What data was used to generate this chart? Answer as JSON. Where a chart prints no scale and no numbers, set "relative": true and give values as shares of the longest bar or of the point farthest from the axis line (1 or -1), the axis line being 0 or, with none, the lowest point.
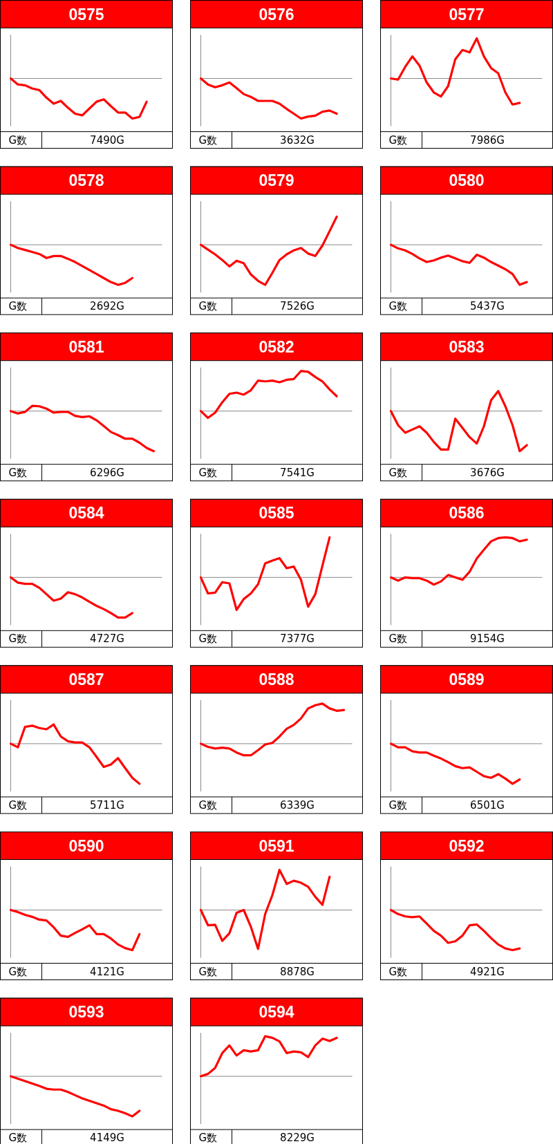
{
  "chart_data": [
    {
      "type": "line",
      "title": "0575",
      "relative": true,
      "color": "#ff0000",
      "annotations": [
        "G数",
        "7490G"
      ],
      "categories": [
        null,
        null,
        null,
        null,
        null,
        null,
        null,
        null,
        null,
        null,
        null,
        null,
        null,
        null,
        null,
        null,
        null,
        null,
        null,
        null,
        null
      ],
      "values": [
        0,
        -0.15,
        -0.17,
        -0.25,
        -0.29,
        -0.48,
        -0.63,
        -0.56,
        -0.73,
        -0.88,
        -0.92,
        -0.75,
        -0.58,
        -0.52,
        -0.69,
        -0.85,
        -0.85,
        -1,
        -0.96,
        -0.58,
        null
      ]
    },
    {
      "type": "line",
      "title": "0576",
      "relative": true,
      "color": "#ff0000",
      "annotations": [
        "G数",
        "3632G"
      ],
      "categories": [
        null,
        null,
        null,
        null,
        null,
        null,
        null,
        null,
        null,
        null,
        null,
        null,
        null,
        null,
        null,
        null,
        null,
        null,
        null,
        null,
        null
      ],
      "values": [
        0,
        -0.15,
        -0.22,
        -0.17,
        -0.1,
        -0.24,
        -0.39,
        -0.46,
        -0.56,
        -0.56,
        -0.56,
        -0.63,
        -0.76,
        -0.88,
        -1,
        -0.95,
        -0.93,
        -0.83,
        -0.8,
        -0.88,
        null
      ]
    },
    {
      "type": "line",
      "title": "0577",
      "relative": true,
      "color": "#ff0000",
      "annotations": [
        "G数",
        "7986G"
      ],
      "categories": [
        null,
        null,
        null,
        null,
        null,
        null,
        null,
        null,
        null,
        null,
        null,
        null,
        null,
        null,
        null,
        null,
        null,
        null,
        null,
        null,
        null
      ],
      "values": [
        0,
        -0.03,
        0.29,
        0.55,
        0.32,
        -0.1,
        -0.35,
        -0.45,
        -0.19,
        0.48,
        0.71,
        0.65,
        1,
        0.55,
        0.26,
        0.13,
        -0.35,
        -0.65,
        -0.61,
        null,
        null
      ]
    },
    {
      "type": "line",
      "title": "0578",
      "relative": true,
      "color": "#ff0000",
      "annotations": [
        "G数",
        "2692G"
      ],
      "categories": [
        null,
        null,
        null,
        null,
        null,
        null,
        null,
        null,
        null,
        null,
        null,
        null,
        null,
        null,
        null,
        null,
        null,
        null,
        null,
        null,
        null
      ],
      "values": [
        0,
        -0.08,
        -0.13,
        -0.18,
        -0.23,
        -0.33,
        -0.28,
        -0.28,
        -0.35,
        -0.43,
        -0.53,
        -0.63,
        -0.73,
        -0.83,
        -0.93,
        -1,
        -0.95,
        -0.83,
        null,
        null,
        null
      ]
    },
    {
      "type": "line",
      "title": "0579",
      "relative": true,
      "color": "#ff0000",
      "annotations": [
        "G数",
        "7526G"
      ],
      "categories": [
        null,
        null,
        null,
        null,
        null,
        null,
        null,
        null,
        null,
        null,
        null,
        null,
        null,
        null,
        null,
        null,
        null,
        null,
        null,
        null,
        null
      ],
      "values": [
        0,
        -0.12,
        -0.24,
        -0.38,
        -0.54,
        -0.4,
        -0.46,
        -0.74,
        -0.9,
        -1,
        -0.7,
        -0.38,
        -0.24,
        -0.14,
        -0.08,
        -0.22,
        -0.28,
        -0.02,
        0.34,
        0.7,
        null
      ]
    },
    {
      "type": "line",
      "title": "0580",
      "relative": true,
      "color": "#ff0000",
      "annotations": [
        "G数",
        "5437G"
      ],
      "categories": [
        null,
        null,
        null,
        null,
        null,
        null,
        null,
        null,
        null,
        null,
        null,
        null,
        null,
        null,
        null,
        null,
        null,
        null,
        null,
        null,
        null
      ],
      "values": [
        0,
        -0.09,
        -0.14,
        -0.23,
        -0.34,
        -0.43,
        -0.39,
        -0.32,
        -0.27,
        -0.34,
        -0.41,
        -0.45,
        -0.25,
        -0.32,
        -0.43,
        -0.52,
        -0.61,
        -0.73,
        -1,
        -0.93,
        null
      ]
    },
    {
      "type": "line",
      "title": "0581",
      "relative": true,
      "color": "#ff0000",
      "annotations": [
        "G数",
        "6296G"
      ],
      "categories": [
        null,
        null,
        null,
        null,
        null,
        null,
        null,
        null,
        null,
        null,
        null,
        null,
        null,
        null,
        null,
        null,
        null,
        null,
        null,
        null,
        null
      ],
      "values": [
        0,
        -0.06,
        -0.02,
        0.13,
        0.12,
        0.06,
        -0.04,
        -0.02,
        -0.02,
        -0.12,
        -0.15,
        -0.13,
        -0.23,
        -0.37,
        -0.52,
        -0.6,
        -0.69,
        -0.69,
        -0.79,
        -0.92,
        -1
      ]
    },
    {
      "type": "line",
      "title": "0582",
      "relative": true,
      "color": "#ff0000",
      "annotations": [
        "G数",
        "7541G"
      ],
      "categories": [
        null,
        null,
        null,
        null,
        null,
        null,
        null,
        null,
        null,
        null,
        null,
        null,
        null,
        null,
        null,
        null,
        null,
        null,
        null,
        null,
        null
      ],
      "values": [
        0,
        -0.17,
        -0.04,
        0.22,
        0.43,
        0.46,
        0.41,
        0.52,
        0.76,
        0.74,
        0.76,
        0.72,
        0.78,
        0.8,
        1,
        0.98,
        0.85,
        0.74,
        0.54,
        0.37,
        null
      ]
    },
    {
      "type": "line",
      "title": "0583",
      "relative": true,
      "color": "#ff0000",
      "annotations": [
        "G数",
        "3676G"
      ],
      "categories": [
        null,
        null,
        null,
        null,
        null,
        null,
        null,
        null,
        null,
        null,
        null,
        null,
        null,
        null,
        null,
        null,
        null,
        null,
        null,
        null,
        null
      ],
      "values": [
        0,
        -0.35,
        -0.54,
        -0.46,
        -0.38,
        -0.54,
        -0.77,
        -0.96,
        -0.96,
        -0.19,
        -0.42,
        -0.65,
        -0.81,
        -0.38,
        0.27,
        0.5,
        0.12,
        -0.35,
        -1,
        -0.85,
        null
      ]
    },
    {
      "type": "line",
      "title": "0584",
      "relative": true,
      "color": "#ff0000",
      "annotations": [
        "G数",
        "4727G"
      ],
      "categories": [
        null,
        null,
        null,
        null,
        null,
        null,
        null,
        null,
        null,
        null,
        null,
        null,
        null,
        null,
        null,
        null,
        null,
        null,
        null,
        null,
        null
      ],
      "values": [
        0,
        -0.13,
        -0.16,
        -0.16,
        -0.26,
        -0.42,
        -0.58,
        -0.53,
        -0.37,
        -0.42,
        -0.5,
        -0.61,
        -0.71,
        -0.79,
        -0.89,
        -1,
        -1,
        -0.89,
        null,
        null,
        null
      ]
    },
    {
      "type": "line",
      "title": "0585",
      "relative": true,
      "color": "#ff0000",
      "annotations": [
        "G数",
        "7377G"
      ],
      "categories": [
        null,
        null,
        null,
        null,
        null,
        null,
        null,
        null,
        null,
        null,
        null,
        null,
        null,
        null,
        null,
        null,
        null,
        null,
        null,
        null,
        null
      ],
      "values": [
        0,
        -0.4,
        -0.38,
        -0.12,
        -0.15,
        -0.81,
        -0.54,
        -0.4,
        -0.17,
        0.35,
        0.42,
        0.48,
        0.23,
        0.27,
        -0.06,
        -0.73,
        -0.42,
        0.29,
        1,
        null,
        null
      ]
    },
    {
      "type": "line",
      "title": "0586",
      "relative": true,
      "color": "#ff0000",
      "annotations": [
        "G数",
        "9154G"
      ],
      "categories": [
        null,
        null,
        null,
        null,
        null,
        null,
        null,
        null,
        null,
        null,
        null,
        null,
        null,
        null,
        null,
        null,
        null,
        null,
        null,
        null,
        null
      ],
      "values": [
        0,
        -0.08,
        0,
        -0.02,
        -0.02,
        -0.08,
        -0.18,
        -0.1,
        0.06,
        0,
        -0.06,
        0.14,
        0.47,
        0.69,
        0.9,
        0.98,
        1,
        0.98,
        0.9,
        0.94,
        null
      ]
    },
    {
      "type": "line",
      "title": "0587",
      "relative": true,
      "color": "#ff0000",
      "annotations": [
        "G数",
        "5711G"
      ],
      "categories": [
        null,
        null,
        null,
        null,
        null,
        null,
        null,
        null,
        null,
        null,
        null,
        null,
        null,
        null,
        null,
        null,
        null,
        null,
        null,
        null,
        null
      ],
      "values": [
        0,
        -0.09,
        0.42,
        0.45,
        0.39,
        0.36,
        0.48,
        0.18,
        0.06,
        0.03,
        0.03,
        -0.09,
        -0.33,
        -0.58,
        -0.52,
        -0.36,
        -0.61,
        -0.85,
        -1,
        null,
        null
      ]
    },
    {
      "type": "line",
      "title": "0588",
      "relative": true,
      "color": "#ff0000",
      "annotations": [
        "G数",
        "6339G"
      ],
      "categories": [
        null,
        null,
        null,
        null,
        null,
        null,
        null,
        null,
        null,
        null,
        null,
        null,
        null,
        null,
        null,
        null,
        null,
        null,
        null,
        null,
        null
      ],
      "values": [
        0,
        -0.08,
        -0.12,
        -0.1,
        -0.12,
        -0.22,
        -0.29,
        -0.29,
        -0.16,
        -0.02,
        0.02,
        0.18,
        0.37,
        0.47,
        0.63,
        0.88,
        0.96,
        1,
        0.88,
        0.82,
        0.84
      ]
    },
    {
      "type": "line",
      "title": "0589",
      "relative": true,
      "color": "#ff0000",
      "annotations": [
        "G数",
        "6501G"
      ],
      "categories": [
        null,
        null,
        null,
        null,
        null,
        null,
        null,
        null,
        null,
        null,
        null,
        null,
        null,
        null,
        null,
        null,
        null,
        null,
        null,
        null,
        null
      ],
      "values": [
        0,
        -0.09,
        -0.09,
        -0.19,
        -0.22,
        -0.22,
        -0.3,
        -0.37,
        -0.46,
        -0.56,
        -0.61,
        -0.59,
        -0.7,
        -0.81,
        -0.85,
        -0.76,
        -0.87,
        -1,
        -0.89,
        null,
        null
      ]
    },
    {
      "type": "line",
      "title": "0590",
      "relative": true,
      "color": "#ff0000",
      "annotations": [
        "G数",
        "4121G"
      ],
      "categories": [
        null,
        null,
        null,
        null,
        null,
        null,
        null,
        null,
        null,
        null,
        null,
        null,
        null,
        null,
        null,
        null,
        null,
        null,
        null,
        null,
        null
      ],
      "values": [
        0,
        -0.05,
        -0.12,
        -0.17,
        -0.24,
        -0.26,
        -0.43,
        -0.64,
        -0.67,
        -0.57,
        -0.48,
        -0.38,
        -0.6,
        -0.6,
        -0.71,
        -0.86,
        -0.95,
        -1,
        -0.6,
        null,
        null
      ]
    },
    {
      "type": "line",
      "title": "0591",
      "relative": true,
      "color": "#ff0000",
      "annotations": [
        "G数",
        "8878G"
      ],
      "categories": [
        null,
        null,
        null,
        null,
        null,
        null,
        null,
        null,
        null,
        null,
        null,
        null,
        null,
        null,
        null,
        null,
        null,
        null,
        null,
        null,
        null
      ],
      "values": [
        0,
        -0.38,
        -0.37,
        -0.77,
        -0.58,
        -0.07,
        0,
        -0.42,
        -0.97,
        -0.1,
        0.37,
        1,
        0.65,
        0.73,
        0.68,
        0.58,
        0.33,
        0.13,
        0.83,
        null,
        null
      ]
    },
    {
      "type": "line",
      "title": "0592",
      "relative": true,
      "color": "#ff0000",
      "annotations": [
        "G数",
        "4921G"
      ],
      "categories": [
        null,
        null,
        null,
        null,
        null,
        null,
        null,
        null,
        null,
        null,
        null,
        null,
        null,
        null,
        null,
        null,
        null,
        null,
        null,
        null,
        null
      ],
      "values": [
        0,
        -0.1,
        -0.16,
        -0.18,
        -0.16,
        -0.34,
        -0.52,
        -0.64,
        -0.82,
        -0.78,
        -0.64,
        -0.38,
        -0.36,
        -0.52,
        -0.7,
        -0.86,
        -0.96,
        -1,
        -0.96,
        null,
        null
      ]
    },
    {
      "type": "line",
      "title": "0593",
      "relative": true,
      "color": "#ff0000",
      "annotations": [
        "G数",
        "4149G"
      ],
      "categories": [
        null,
        null,
        null,
        null,
        null,
        null,
        null,
        null,
        null,
        null,
        null,
        null,
        null,
        null,
        null,
        null,
        null,
        null,
        null,
        null,
        null
      ],
      "values": [
        0,
        -0.06,
        -0.12,
        -0.18,
        -0.24,
        -0.31,
        -0.33,
        -0.33,
        -0.39,
        -0.47,
        -0.55,
        -0.61,
        -0.67,
        -0.73,
        -0.82,
        -0.86,
        -0.92,
        -1,
        -0.86,
        null,
        null
      ]
    },
    {
      "type": "line",
      "title": "0594",
      "relative": true,
      "color": "#ff0000",
      "annotations": [
        "G数",
        "8229G"
      ],
      "categories": [
        null,
        null,
        null,
        null,
        null,
        null,
        null,
        null,
        null,
        null,
        null,
        null,
        null,
        null,
        null,
        null,
        null,
        null,
        null,
        null,
        null
      ],
      "values": [
        0,
        0.06,
        0.21,
        0.58,
        0.77,
        0.52,
        0.65,
        0.62,
        0.65,
        1,
        0.96,
        0.87,
        0.58,
        0.62,
        0.6,
        0.48,
        0.77,
        0.94,
        0.88,
        0.96,
        null
      ]
    }
  ]
}
